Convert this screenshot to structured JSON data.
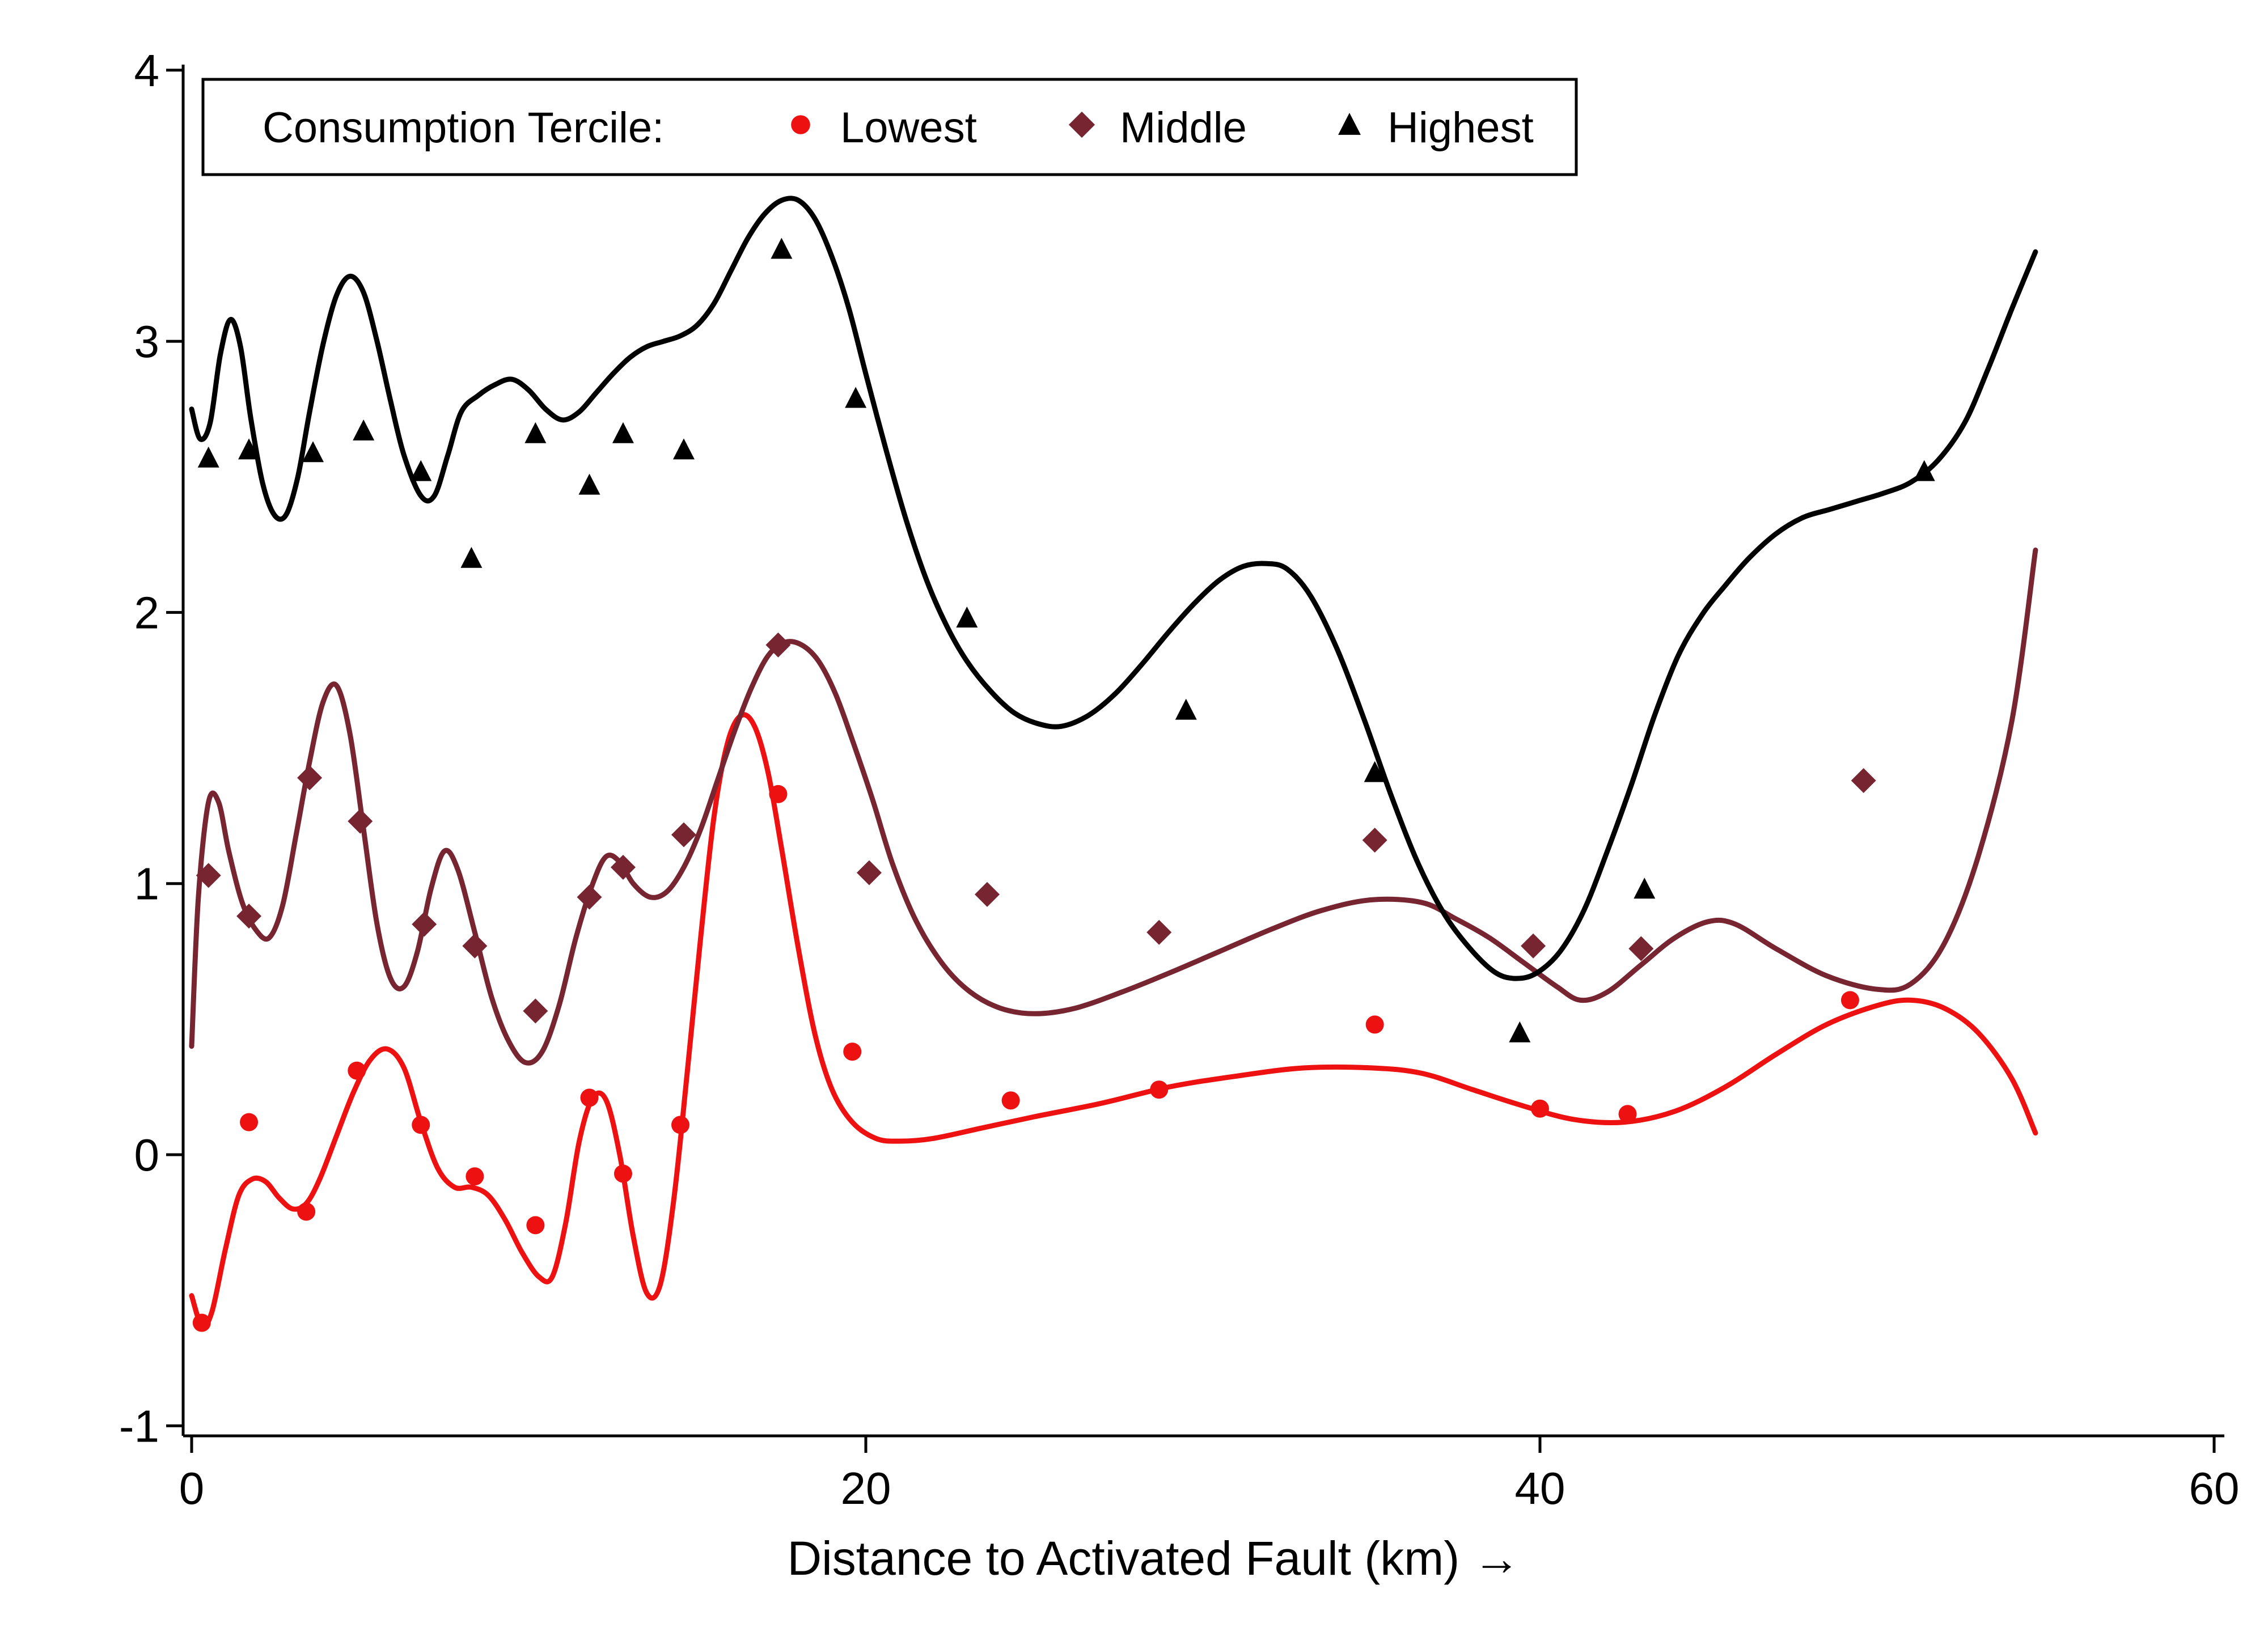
{
  "chart_data": {
    "type": "scatter",
    "title": "",
    "xlabel": "Distance to Activated Fault (km) →",
    "ylabel": "",
    "xlim": [
      -0.5,
      60.2
    ],
    "ylim": [
      -1.1,
      4.08
    ],
    "xticks": [
      0,
      20,
      40,
      60
    ],
    "xtick_labels": [
      "0",
      "20",
      "40",
      "60"
    ],
    "yticks": [
      -1,
      0,
      1,
      2,
      3,
      4
    ],
    "ytick_labels": [
      "-1",
      "0",
      "1",
      "2",
      "3",
      "4"
    ],
    "grid": false,
    "legend": {
      "placement": "top-left",
      "title": "Consumption Tercile:",
      "entries": [
        {
          "label": "Lowest",
          "marker": "circle",
          "color": "#ee1111"
        },
        {
          "label": "Middle",
          "marker": "diamond",
          "color": "#772530"
        },
        {
          "label": "Highest",
          "marker": "triangle",
          "color": "#000000"
        }
      ]
    },
    "series": [
      {
        "name": "Lowest",
        "marker": "circle",
        "color": "#ee1111",
        "points": [
          [
            0.3,
            -0.62
          ],
          [
            1.7,
            0.12
          ],
          [
            3.4,
            -0.21
          ],
          [
            4.9,
            0.31
          ],
          [
            6.8,
            0.11
          ],
          [
            8.4,
            -0.08
          ],
          [
            10.2,
            -0.26
          ],
          [
            11.8,
            0.21
          ],
          [
            12.8,
            -0.07
          ],
          [
            14.5,
            0.11
          ],
          [
            17.4,
            1.33
          ],
          [
            19.6,
            0.38
          ],
          [
            24.3,
            0.2
          ],
          [
            28.7,
            0.24
          ],
          [
            35.1,
            0.48
          ],
          [
            40.0,
            0.17
          ],
          [
            42.6,
            0.15
          ],
          [
            49.2,
            0.57
          ]
        ],
        "curve": [
          [
            0.0,
            -0.52
          ],
          [
            0.3,
            -0.63
          ],
          [
            0.6,
            -0.58
          ],
          [
            1.0,
            -0.35
          ],
          [
            1.4,
            -0.15
          ],
          [
            1.8,
            -0.09
          ],
          [
            2.2,
            -0.1
          ],
          [
            2.6,
            -0.16
          ],
          [
            3.0,
            -0.2
          ],
          [
            3.4,
            -0.18
          ],
          [
            3.8,
            -0.09
          ],
          [
            4.3,
            0.07
          ],
          [
            4.8,
            0.23
          ],
          [
            5.3,
            0.35
          ],
          [
            5.8,
            0.39
          ],
          [
            6.3,
            0.32
          ],
          [
            6.8,
            0.12
          ],
          [
            7.3,
            -0.05
          ],
          [
            7.8,
            -0.12
          ],
          [
            8.3,
            -0.12
          ],
          [
            8.8,
            -0.15
          ],
          [
            9.3,
            -0.24
          ],
          [
            9.8,
            -0.36
          ],
          [
            10.3,
            -0.45
          ],
          [
            10.7,
            -0.45
          ],
          [
            11.1,
            -0.25
          ],
          [
            11.5,
            0.05
          ],
          [
            11.9,
            0.21
          ],
          [
            12.3,
            0.2
          ],
          [
            12.7,
            0.0
          ],
          [
            13.1,
            -0.3
          ],
          [
            13.5,
            -0.51
          ],
          [
            13.9,
            -0.48
          ],
          [
            14.3,
            -0.17
          ],
          [
            14.7,
            0.3
          ],
          [
            15.1,
            0.8
          ],
          [
            15.5,
            1.25
          ],
          [
            15.9,
            1.52
          ],
          [
            16.3,
            1.62
          ],
          [
            16.7,
            1.58
          ],
          [
            17.1,
            1.41
          ],
          [
            17.5,
            1.13
          ],
          [
            18.0,
            0.76
          ],
          [
            18.5,
            0.44
          ],
          [
            19.0,
            0.24
          ],
          [
            19.6,
            0.12
          ],
          [
            20.3,
            0.06
          ],
          [
            21.0,
            0.05
          ],
          [
            22.0,
            0.06
          ],
          [
            23.5,
            0.1
          ],
          [
            25.0,
            0.14
          ],
          [
            27.0,
            0.19
          ],
          [
            29.0,
            0.25
          ],
          [
            31.0,
            0.29
          ],
          [
            33.0,
            0.32
          ],
          [
            35.0,
            0.32
          ],
          [
            36.5,
            0.3
          ],
          [
            38.0,
            0.24
          ],
          [
            39.5,
            0.18
          ],
          [
            41.0,
            0.13
          ],
          [
            42.5,
            0.12
          ],
          [
            44.0,
            0.16
          ],
          [
            45.5,
            0.25
          ],
          [
            47.0,
            0.37
          ],
          [
            48.5,
            0.48
          ],
          [
            50.0,
            0.55
          ],
          [
            51.0,
            0.57
          ],
          [
            52.0,
            0.54
          ],
          [
            53.0,
            0.45
          ],
          [
            54.0,
            0.28
          ],
          [
            54.7,
            0.08
          ]
        ]
      },
      {
        "name": "Middle",
        "marker": "diamond",
        "color": "#772530",
        "points": [
          [
            0.5,
            1.03
          ],
          [
            1.7,
            0.88
          ],
          [
            3.5,
            1.39
          ],
          [
            5.0,
            1.23
          ],
          [
            6.9,
            0.85
          ],
          [
            8.4,
            0.77
          ],
          [
            10.2,
            0.53
          ],
          [
            11.8,
            0.95
          ],
          [
            12.8,
            1.06
          ],
          [
            14.6,
            1.18
          ],
          [
            17.4,
            1.88
          ],
          [
            20.1,
            1.04
          ],
          [
            23.6,
            0.96
          ],
          [
            28.7,
            0.82
          ],
          [
            35.1,
            1.16
          ],
          [
            39.8,
            0.77
          ],
          [
            43.0,
            0.76
          ],
          [
            49.6,
            1.38
          ]
        ],
        "curve": [
          [
            0.0,
            0.4
          ],
          [
            0.2,
            0.95
          ],
          [
            0.5,
            1.3
          ],
          [
            0.8,
            1.3
          ],
          [
            1.1,
            1.12
          ],
          [
            1.5,
            0.93
          ],
          [
            1.9,
            0.83
          ],
          [
            2.3,
            0.8
          ],
          [
            2.7,
            0.92
          ],
          [
            3.1,
            1.18
          ],
          [
            3.5,
            1.45
          ],
          [
            3.9,
            1.67
          ],
          [
            4.3,
            1.73
          ],
          [
            4.7,
            1.55
          ],
          [
            5.1,
            1.2
          ],
          [
            5.5,
            0.85
          ],
          [
            5.9,
            0.65
          ],
          [
            6.3,
            0.62
          ],
          [
            6.7,
            0.75
          ],
          [
            7.1,
            0.98
          ],
          [
            7.5,
            1.12
          ],
          [
            7.9,
            1.05
          ],
          [
            8.4,
            0.82
          ],
          [
            8.9,
            0.58
          ],
          [
            9.4,
            0.42
          ],
          [
            9.9,
            0.34
          ],
          [
            10.4,
            0.38
          ],
          [
            10.9,
            0.55
          ],
          [
            11.4,
            0.8
          ],
          [
            11.9,
            1.0
          ],
          [
            12.3,
            1.1
          ],
          [
            12.7,
            1.08
          ],
          [
            13.1,
            1.0
          ],
          [
            13.6,
            0.95
          ],
          [
            14.1,
            0.97
          ],
          [
            14.6,
            1.06
          ],
          [
            15.1,
            1.2
          ],
          [
            15.6,
            1.38
          ],
          [
            16.1,
            1.56
          ],
          [
            16.6,
            1.72
          ],
          [
            17.1,
            1.84
          ],
          [
            17.6,
            1.89
          ],
          [
            18.1,
            1.88
          ],
          [
            18.6,
            1.82
          ],
          [
            19.1,
            1.7
          ],
          [
            19.6,
            1.53
          ],
          [
            20.2,
            1.31
          ],
          [
            20.8,
            1.07
          ],
          [
            21.5,
            0.86
          ],
          [
            22.3,
            0.7
          ],
          [
            23.1,
            0.6
          ],
          [
            24.0,
            0.54
          ],
          [
            25.0,
            0.52
          ],
          [
            26.2,
            0.54
          ],
          [
            27.6,
            0.6
          ],
          [
            29.0,
            0.67
          ],
          [
            30.5,
            0.75
          ],
          [
            32.0,
            0.83
          ],
          [
            33.5,
            0.9
          ],
          [
            35.0,
            0.94
          ],
          [
            36.5,
            0.93
          ],
          [
            37.5,
            0.87
          ],
          [
            38.5,
            0.8
          ],
          [
            39.5,
            0.71
          ],
          [
            40.5,
            0.62
          ],
          [
            41.2,
            0.57
          ],
          [
            42.0,
            0.6
          ],
          [
            43.0,
            0.7
          ],
          [
            44.0,
            0.8
          ],
          [
            45.0,
            0.86
          ],
          [
            45.8,
            0.85
          ],
          [
            47.0,
            0.76
          ],
          [
            48.5,
            0.66
          ],
          [
            50.0,
            0.61
          ],
          [
            51.0,
            0.63
          ],
          [
            52.0,
            0.78
          ],
          [
            53.0,
            1.1
          ],
          [
            54.0,
            1.6
          ],
          [
            54.7,
            2.23
          ]
        ]
      },
      {
        "name": "Highest",
        "marker": "triangle",
        "color": "#000000",
        "points": [
          [
            0.5,
            2.57
          ],
          [
            1.7,
            2.6
          ],
          [
            3.6,
            2.59
          ],
          [
            5.1,
            2.67
          ],
          [
            6.8,
            2.52
          ],
          [
            8.3,
            2.2
          ],
          [
            10.2,
            2.66
          ],
          [
            11.8,
            2.47
          ],
          [
            12.8,
            2.66
          ],
          [
            14.6,
            2.6
          ],
          [
            17.5,
            3.34
          ],
          [
            19.7,
            2.79
          ],
          [
            23.0,
            1.98
          ],
          [
            29.5,
            1.64
          ],
          [
            35.1,
            1.41
          ],
          [
            39.4,
            0.45
          ],
          [
            43.1,
            0.98
          ],
          [
            51.4,
            2.52
          ]
        ],
        "curve": [
          [
            0.0,
            2.75
          ],
          [
            0.25,
            2.64
          ],
          [
            0.55,
            2.7
          ],
          [
            0.85,
            2.95
          ],
          [
            1.15,
            3.08
          ],
          [
            1.45,
            2.98
          ],
          [
            1.75,
            2.72
          ],
          [
            2.1,
            2.48
          ],
          [
            2.45,
            2.36
          ],
          [
            2.8,
            2.36
          ],
          [
            3.15,
            2.5
          ],
          [
            3.5,
            2.74
          ],
          [
            3.9,
            2.99
          ],
          [
            4.3,
            3.17
          ],
          [
            4.7,
            3.24
          ],
          [
            5.1,
            3.18
          ],
          [
            5.5,
            3.0
          ],
          [
            5.9,
            2.78
          ],
          [
            6.3,
            2.58
          ],
          [
            6.8,
            2.43
          ],
          [
            7.2,
            2.43
          ],
          [
            7.6,
            2.58
          ],
          [
            8.0,
            2.74
          ],
          [
            8.5,
            2.8
          ],
          [
            9.0,
            2.84
          ],
          [
            9.5,
            2.86
          ],
          [
            10.0,
            2.82
          ],
          [
            10.5,
            2.75
          ],
          [
            11.0,
            2.71
          ],
          [
            11.5,
            2.74
          ],
          [
            12.0,
            2.81
          ],
          [
            12.5,
            2.88
          ],
          [
            13.0,
            2.94
          ],
          [
            13.5,
            2.98
          ],
          [
            14.0,
            3.0
          ],
          [
            14.5,
            3.02
          ],
          [
            15.0,
            3.06
          ],
          [
            15.5,
            3.14
          ],
          [
            16.0,
            3.26
          ],
          [
            16.5,
            3.38
          ],
          [
            17.0,
            3.47
          ],
          [
            17.5,
            3.52
          ],
          [
            18.0,
            3.52
          ],
          [
            18.5,
            3.45
          ],
          [
            19.0,
            3.31
          ],
          [
            19.5,
            3.12
          ],
          [
            20.0,
            2.88
          ],
          [
            20.6,
            2.6
          ],
          [
            21.2,
            2.34
          ],
          [
            21.8,
            2.12
          ],
          [
            22.4,
            1.95
          ],
          [
            23.0,
            1.82
          ],
          [
            23.7,
            1.71
          ],
          [
            24.4,
            1.63
          ],
          [
            25.1,
            1.59
          ],
          [
            25.8,
            1.58
          ],
          [
            26.6,
            1.62
          ],
          [
            27.4,
            1.7
          ],
          [
            28.2,
            1.81
          ],
          [
            29.0,
            1.93
          ],
          [
            29.8,
            2.04
          ],
          [
            30.5,
            2.12
          ],
          [
            31.2,
            2.17
          ],
          [
            31.9,
            2.18
          ],
          [
            32.5,
            2.16
          ],
          [
            33.2,
            2.06
          ],
          [
            34.0,
            1.86
          ],
          [
            34.8,
            1.6
          ],
          [
            35.6,
            1.32
          ],
          [
            36.4,
            1.07
          ],
          [
            37.2,
            0.88
          ],
          [
            38.0,
            0.75
          ],
          [
            38.7,
            0.67
          ],
          [
            39.3,
            0.65
          ],
          [
            39.9,
            0.67
          ],
          [
            40.6,
            0.75
          ],
          [
            41.3,
            0.9
          ],
          [
            42.0,
            1.12
          ],
          [
            42.7,
            1.36
          ],
          [
            43.4,
            1.62
          ],
          [
            44.1,
            1.84
          ],
          [
            44.8,
            1.99
          ],
          [
            45.5,
            2.1
          ],
          [
            46.2,
            2.2
          ],
          [
            47.0,
            2.29
          ],
          [
            47.8,
            2.35
          ],
          [
            48.6,
            2.38
          ],
          [
            49.4,
            2.41
          ],
          [
            50.2,
            2.44
          ],
          [
            51.0,
            2.48
          ],
          [
            51.8,
            2.56
          ],
          [
            52.6,
            2.7
          ],
          [
            53.3,
            2.9
          ],
          [
            54.0,
            3.12
          ],
          [
            54.7,
            3.33
          ]
        ]
      }
    ]
  }
}
